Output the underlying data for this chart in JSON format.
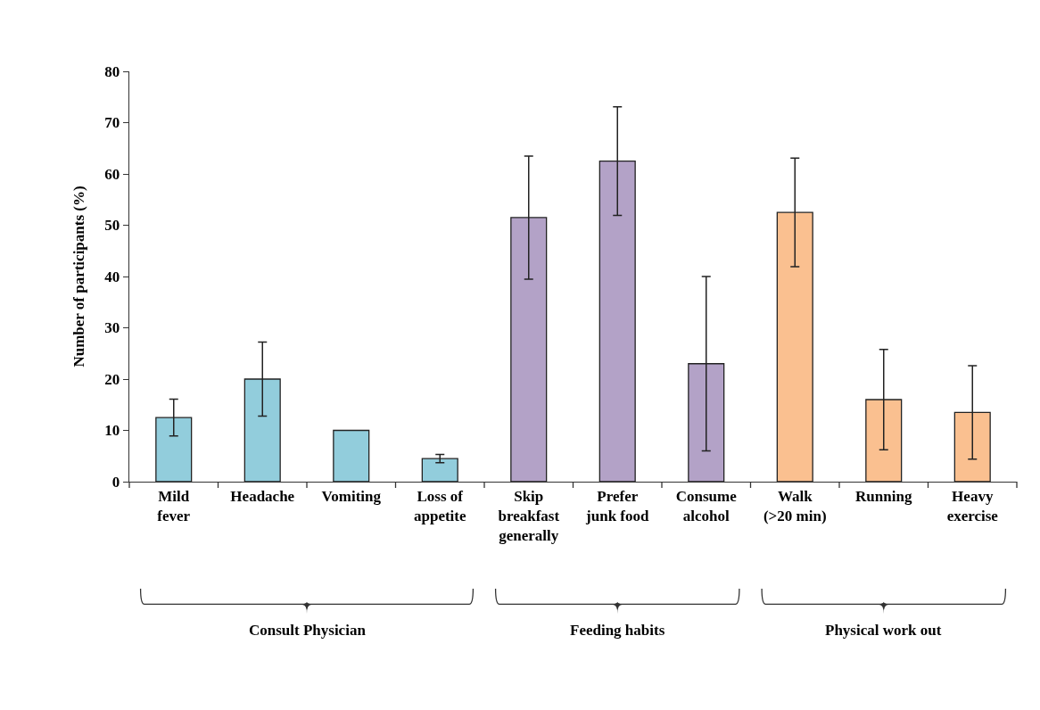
{
  "chart_data": {
    "type": "bar",
    "ylabel": "Number of participants (%)",
    "categories": [
      "Mild fever",
      "Headache",
      "Vomiting",
      "Loss of appetite",
      "Skip breakfast generally",
      "Prefer junk food",
      "Consume alcohol",
      "Walk (>20 min)",
      "Running",
      "Heavy exercise"
    ],
    "values": [
      12.5,
      20,
      10,
      4.5,
      51.5,
      62.5,
      23,
      52.5,
      16,
      13.5
    ],
    "errors": [
      3.6,
      7.2,
      null,
      0.8,
      12,
      10.6,
      17,
      10.6,
      9.8,
      9.1
    ],
    "colors": [
      "#92cddc",
      "#92cddc",
      "#92cddc",
      "#92cddc",
      "#b3a2c7",
      "#b3a2c7",
      "#b3a2c7",
      "#fac090",
      "#fac090",
      "#fac090"
    ],
    "ylim": [
      0,
      80
    ],
    "yticks": [
      0,
      10,
      20,
      30,
      40,
      50,
      60,
      70,
      80
    ],
    "grid": false,
    "legend": false,
    "annotations": [
      "Consult Physician",
      "Feeding habits",
      "Physical work out"
    ]
  }
}
